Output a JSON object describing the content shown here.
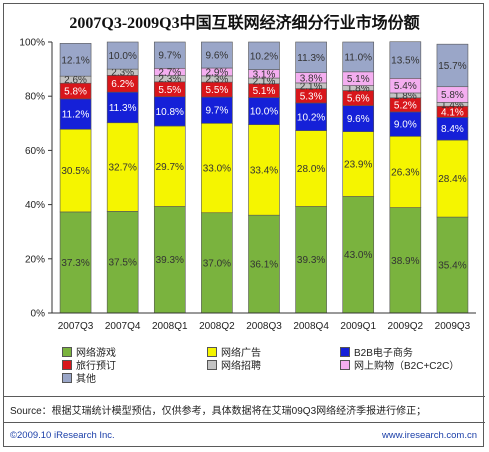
{
  "chart_data": {
    "type": "bar",
    "stacked": true,
    "title": "2007Q3-2009Q3中国互联网经济细分行业市场份额",
    "categories": [
      "2007Q3",
      "2007Q4",
      "2008Q1",
      "2008Q2",
      "2008Q3",
      "2008Q4",
      "2009Q1",
      "2009Q2",
      "2009Q3"
    ],
    "ylim": [
      0,
      100
    ],
    "y_ticks": [
      "0%",
      "20%",
      "40%",
      "60%",
      "80%",
      "100%"
    ],
    "series": [
      {
        "name": "网络游戏",
        "color": "#7ab33e",
        "values": [
          37.3,
          37.5,
          39.3,
          37.0,
          36.1,
          39.3,
          43.0,
          38.9,
          35.4
        ],
        "labels": [
          "37.3%",
          "37.5%",
          "39.3%",
          "37.0%",
          "36.1%",
          "39.3%",
          "43.0%",
          "38.9%",
          "35.4%"
        ]
      },
      {
        "name": "网络广告",
        "color": "#f5f500",
        "values": [
          30.5,
          32.7,
          29.7,
          33.0,
          33.4,
          28.0,
          23.9,
          26.3,
          28.4
        ],
        "labels": [
          "30.5%",
          "32.7%",
          "29.7%",
          "33.0%",
          "33.4%",
          "28.0%",
          "23.9%",
          "26.3%",
          "28.4%"
        ]
      },
      {
        "name": "B2B电子商务",
        "color": "#1520d8",
        "values": [
          11.2,
          11.3,
          10.8,
          9.7,
          10.0,
          10.2,
          9.6,
          9.0,
          8.4
        ],
        "labels": [
          "11.2%",
          "11.3%",
          "10.8%",
          "9.7%",
          "10.0%",
          "10.2%",
          "9.6%",
          "9.0%",
          "8.4%"
        ]
      },
      {
        "name": "旅行预订",
        "color": "#d8161b",
        "values": [
          5.8,
          6.2,
          5.5,
          5.5,
          5.1,
          5.3,
          5.6,
          5.2,
          4.1
        ],
        "labels": [
          "5.8%",
          "6.2%",
          "5.5%",
          "5.5%",
          "5.1%",
          "5.3%",
          "5.6%",
          "5.2%",
          "4.1%"
        ]
      },
      {
        "name": "网络招聘",
        "color": "#c3c3c3",
        "values": [
          2.6,
          2.3,
          2.3,
          2.3,
          2.1,
          2.1,
          1.8,
          1.8,
          1.4
        ],
        "labels": [
          "2.6%",
          "2.3%",
          "2.3%",
          "2.3%",
          "2.1%",
          "2.1%",
          "1.8%",
          "1.8%",
          "1.4%"
        ]
      },
      {
        "name": "网上购物（B2C+C2C）",
        "color": "#f4aef0",
        "values": [
          0.0,
          0.0,
          2.7,
          2.9,
          3.1,
          3.8,
          5.1,
          5.4,
          5.8
        ],
        "labels": [
          "",
          "",
          "2.7%",
          "2.9%",
          "3.1%",
          "3.8%",
          "5.1%",
          "5.4%",
          "5.8%"
        ]
      },
      {
        "name": "其他",
        "color": "#9aa6c8",
        "values": [
          12.1,
          10.0,
          9.7,
          9.6,
          10.2,
          11.3,
          11.0,
          13.5,
          15.7
        ],
        "labels": [
          "12.1%",
          "10.0%",
          "9.7%",
          "9.6%",
          "10.2%",
          "11.3%",
          "11.0%",
          "13.5%",
          "15.7%"
        ]
      }
    ],
    "legend": {
      "placement": "bottom",
      "columns": 3
    },
    "grid": false
  },
  "footer": {
    "source": "Source：根据艾瑞统计模型预估，仅供参考，具体数据将在艾瑞09Q3网络经济季报进行修正；",
    "copyright": "©2009.10 iResearch Inc.",
    "website": "www.iresearch.com.cn"
  }
}
